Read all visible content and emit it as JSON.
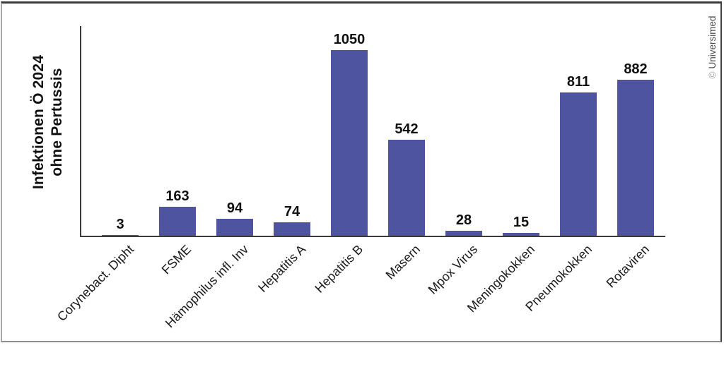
{
  "chart_data": {
    "type": "bar",
    "title": "",
    "ylabel_lines": [
      "Infektionen Ö 2024",
      "ohne Pertussis"
    ],
    "categories": [
      "Corynebact. Dipht",
      "FSME",
      "Hämophilus infl. Inv",
      "Hepatitis A",
      "Hepatitis B",
      "Masern",
      "Mpox Virus",
      "Meningokokken",
      "Pneumokokken",
      "Rotaviren"
    ],
    "values": [
      3,
      163,
      94,
      74,
      1050,
      542,
      28,
      15,
      811,
      882
    ],
    "xlabel": "",
    "ylabel": "Infektionen Ö 2024 ohne Pertussis",
    "ylim": [
      0,
      1050
    ],
    "grid": false,
    "legend_position": "none",
    "value_labels_shown": true,
    "bar_color": "#4e54a0",
    "axis_color": "#3a3a3a",
    "label_color": "#111111"
  },
  "copyright": {
    "symbol": "©",
    "label": "Universimed"
  }
}
